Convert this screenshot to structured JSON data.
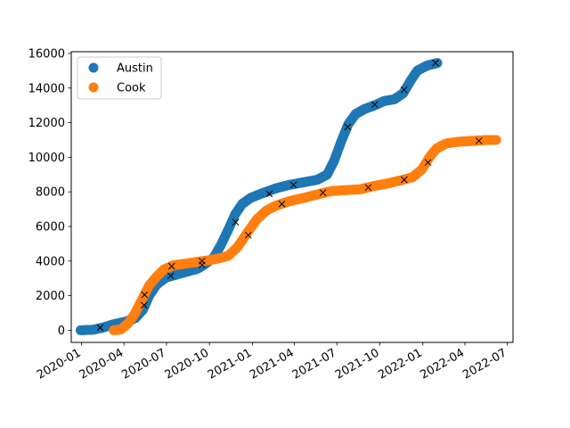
{
  "chart_data": {
    "type": "scatter",
    "title": "",
    "xlabel": "",
    "ylabel": "",
    "x_type": "date",
    "xlim": [
      "2019-12-10",
      "2022-07-13"
    ],
    "ylim": [
      -700,
      16100
    ],
    "x_ticks": [
      "2020-01-01",
      "2020-04-01",
      "2020-07-01",
      "2020-10-01",
      "2021-01-01",
      "2021-04-01",
      "2021-07-01",
      "2021-10-01",
      "2022-01-01",
      "2022-04-01",
      "2022-07-01"
    ],
    "x_tick_labels": [
      "2020-01",
      "2020-04",
      "2020-07",
      "2020-10",
      "2021-01",
      "2021-04",
      "2021-07",
      "2021-10",
      "2022-01",
      "2022-04",
      "2022-07"
    ],
    "y_ticks": [
      0,
      2000,
      4000,
      6000,
      8000,
      10000,
      12000,
      14000,
      16000
    ],
    "y_tick_labels": [
      "0",
      "2000",
      "4000",
      "6000",
      "8000",
      "10000",
      "12000",
      "14000",
      "16000"
    ],
    "grid": false,
    "legend": "upper-left",
    "series": [
      {
        "name": "Austin",
        "color": "#1f77b4",
        "points": [
          [
            "2019-12-30",
            0
          ],
          [
            "2020-01-25",
            30
          ],
          [
            "2020-02-15",
            150
          ],
          [
            "2020-03-10",
            350
          ],
          [
            "2020-04-05",
            500
          ],
          [
            "2020-04-25",
            700
          ],
          [
            "2020-05-12",
            1200
          ],
          [
            "2020-05-25",
            2000
          ],
          [
            "2020-06-10",
            2650
          ],
          [
            "2020-06-30",
            3050
          ],
          [
            "2020-07-20",
            3200
          ],
          [
            "2020-08-15",
            3400
          ],
          [
            "2020-09-05",
            3550
          ],
          [
            "2020-09-20",
            3800
          ],
          [
            "2020-10-10",
            4200
          ],
          [
            "2020-10-25",
            4900
          ],
          [
            "2020-11-10",
            5800
          ],
          [
            "2020-11-25",
            6700
          ],
          [
            "2020-12-10",
            7300
          ],
          [
            "2020-12-28",
            7650
          ],
          [
            "2021-01-20",
            7900
          ],
          [
            "2021-02-20",
            8200
          ],
          [
            "2021-03-20",
            8400
          ],
          [
            "2021-04-20",
            8550
          ],
          [
            "2021-05-20",
            8700
          ],
          [
            "2021-06-10",
            9000
          ],
          [
            "2021-06-25",
            9800
          ],
          [
            "2021-07-10",
            10900
          ],
          [
            "2021-07-25",
            11900
          ],
          [
            "2021-08-10",
            12500
          ],
          [
            "2021-08-30",
            12800
          ],
          [
            "2021-09-20",
            13000
          ],
          [
            "2021-10-10",
            13250
          ],
          [
            "2021-11-01",
            13350
          ],
          [
            "2021-11-20",
            13700
          ],
          [
            "2021-12-05",
            14400
          ],
          [
            "2021-12-20",
            15000
          ],
          [
            "2022-01-10",
            15300
          ],
          [
            "2022-01-25",
            15400
          ],
          [
            "2022-02-01",
            15450
          ]
        ],
        "markers": [
          [
            "2020-02-10",
            150
          ],
          [
            "2020-05-14",
            1450
          ],
          [
            "2020-07-10",
            3150
          ],
          [
            "2020-09-15",
            3780
          ],
          [
            "2020-11-26",
            6250
          ],
          [
            "2021-02-06",
            7880
          ],
          [
            "2021-03-30",
            8400
          ],
          [
            "2021-07-24",
            11750
          ],
          [
            "2021-09-20",
            13050
          ],
          [
            "2021-11-22",
            13900
          ],
          [
            "2022-01-28",
            15450
          ]
        ]
      },
      {
        "name": "Cook",
        "color": "#ff7f0e",
        "points": [
          [
            "2020-03-10",
            0
          ],
          [
            "2020-03-25",
            50
          ],
          [
            "2020-04-10",
            400
          ],
          [
            "2020-04-25",
            1000
          ],
          [
            "2020-05-10",
            1800
          ],
          [
            "2020-05-25",
            2600
          ],
          [
            "2020-06-10",
            3100
          ],
          [
            "2020-06-25",
            3500
          ],
          [
            "2020-07-15",
            3750
          ],
          [
            "2020-08-10",
            3850
          ],
          [
            "2020-09-05",
            3950
          ],
          [
            "2020-09-30",
            4050
          ],
          [
            "2020-10-20",
            4150
          ],
          [
            "2020-11-10",
            4300
          ],
          [
            "2020-11-30",
            4800
          ],
          [
            "2020-12-20",
            5600
          ],
          [
            "2021-01-10",
            6400
          ],
          [
            "2021-01-30",
            6900
          ],
          [
            "2021-02-20",
            7200
          ],
          [
            "2021-03-20",
            7450
          ],
          [
            "2021-04-20",
            7650
          ],
          [
            "2021-05-20",
            7850
          ],
          [
            "2021-06-20",
            8050
          ],
          [
            "2021-07-20",
            8100
          ],
          [
            "2021-08-20",
            8150
          ],
          [
            "2021-09-20",
            8350
          ],
          [
            "2021-10-20",
            8500
          ],
          [
            "2021-11-20",
            8700
          ],
          [
            "2021-12-10",
            8850
          ],
          [
            "2021-12-30",
            9300
          ],
          [
            "2022-01-15",
            10000
          ],
          [
            "2022-01-30",
            10500
          ],
          [
            "2022-02-20",
            10800
          ],
          [
            "2022-03-20",
            10900
          ],
          [
            "2022-04-20",
            10950
          ],
          [
            "2022-05-20",
            11000
          ],
          [
            "2022-06-07",
            11000
          ]
        ],
        "markers": [
          [
            "2020-05-15",
            2050
          ],
          [
            "2020-07-12",
            3700
          ],
          [
            "2020-09-15",
            4000
          ],
          [
            "2020-12-23",
            5500
          ],
          [
            "2021-03-05",
            7300
          ],
          [
            "2021-06-01",
            7950
          ],
          [
            "2021-09-06",
            8250
          ],
          [
            "2021-11-22",
            8700
          ],
          [
            "2022-01-12",
            9700
          ],
          [
            "2022-05-01",
            10950
          ]
        ]
      }
    ]
  }
}
